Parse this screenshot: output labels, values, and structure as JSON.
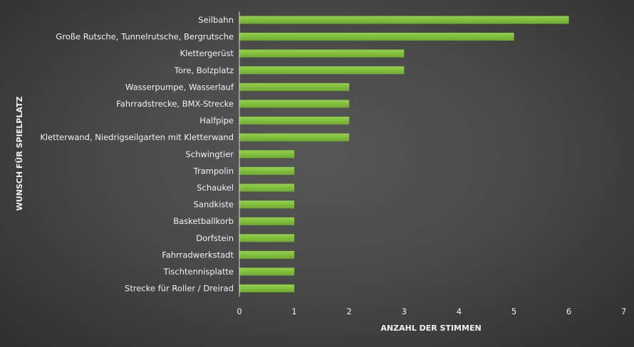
{
  "chart_data": {
    "type": "bar",
    "orientation": "horizontal",
    "categories": [
      "Seilbahn",
      "Große Rutsche, Tunnelrutsche, Bergrutsche",
      "Klettergerüst",
      "Tore, Bolzplatz",
      "Wasserpumpe, Wasserlauf",
      "Fahrradstrecke, BMX-Strecke",
      "Halfpipe",
      "Kletterwand, Niedrigseilgarten mit Kletterwand",
      "Schwingtier",
      "Trampolin",
      "Schaukel",
      "Sandkiste",
      "Basketballkorb",
      "Dorfstein",
      "Fahrradwerkstadt",
      "Tischtennisplatte",
      "Strecke für Roller / Dreirad"
    ],
    "values": [
      6,
      5,
      3,
      3,
      2,
      2,
      2,
      2,
      1,
      1,
      1,
      1,
      1,
      1,
      1,
      1,
      1
    ],
    "xlabel": "ANZAHL DER STIMMEN",
    "ylabel": "WUNSCH FÜR SPIELPLATZ",
    "xlim": [
      0,
      7
    ],
    "xticks": [
      "0",
      "1",
      "2",
      "3",
      "4",
      "5",
      "6",
      "7"
    ],
    "grid": false,
    "legend": "none",
    "colors": {
      "bar": "#78b836",
      "bar_top": "#8fcf48",
      "axis": "#d9d9d9",
      "text": "#f2f2f2"
    }
  }
}
